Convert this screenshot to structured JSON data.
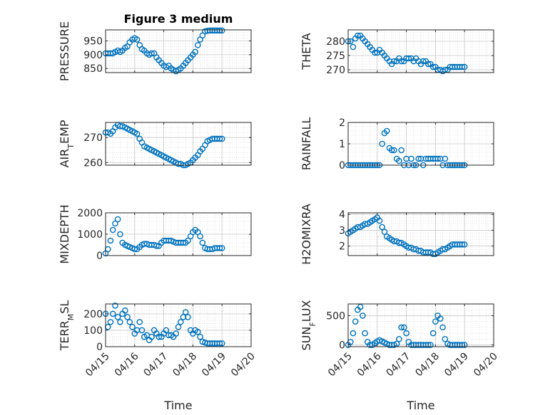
{
  "figure": {
    "title": "Figure 3 medium",
    "xlabel": "Time"
  },
  "chart_data": [
    {
      "type": "scatter",
      "title": "Figure 3 medium",
      "ylabel": "PRESSURE",
      "ylim": [
        835,
        990
      ],
      "yticks": [
        850,
        900,
        950
      ],
      "xlim": [
        0,
        5
      ],
      "xticks": [
        "04/15",
        "04/16",
        "04/17",
        "04/18",
        "04/19",
        "04/20"
      ],
      "grid": true,
      "x": [
        0,
        0.08,
        0.17,
        0.25,
        0.33,
        0.42,
        0.5,
        0.58,
        0.67,
        0.75,
        0.83,
        0.92,
        1.0,
        1.08,
        1.17,
        1.25,
        1.33,
        1.42,
        1.5,
        1.58,
        1.67,
        1.75,
        1.83,
        1.92,
        2.0,
        2.08,
        2.17,
        2.25,
        2.33,
        2.42,
        2.5,
        2.58,
        2.67,
        2.75,
        2.83,
        2.92,
        3.0,
        3.08,
        3.17,
        3.25,
        3.33,
        3.42,
        3.5,
        3.58,
        3.67,
        3.75,
        3.83,
        3.92,
        4.0
      ],
      "y": [
        905,
        905,
        905,
        905,
        910,
        915,
        910,
        915,
        925,
        930,
        945,
        955,
        960,
        955,
        935,
        920,
        915,
        905,
        900,
        905,
        905,
        890,
        880,
        870,
        860,
        855,
        860,
        850,
        845,
        840,
        845,
        850,
        860,
        870,
        880,
        890,
        900,
        910,
        935,
        955,
        970,
        985,
        987,
        988,
        988,
        988,
        988,
        988,
        988
      ]
    },
    {
      "type": "scatter",
      "ylabel": "THETA",
      "ylim": [
        269,
        284
      ],
      "yticks": [
        270,
        275,
        280
      ],
      "xlim": [
        0,
        5
      ],
      "xticks": [
        "04/15",
        "04/16",
        "04/17",
        "04/18",
        "04/19",
        "04/20"
      ],
      "grid": true,
      "x": [
        0,
        0.08,
        0.17,
        0.25,
        0.33,
        0.42,
        0.5,
        0.58,
        0.67,
        0.75,
        0.83,
        0.92,
        1.0,
        1.08,
        1.17,
        1.25,
        1.33,
        1.42,
        1.5,
        1.58,
        1.67,
        1.75,
        1.83,
        1.92,
        2.0,
        2.08,
        2.17,
        2.25,
        2.33,
        2.42,
        2.5,
        2.58,
        2.67,
        2.75,
        2.83,
        2.92,
        3.0,
        3.08,
        3.17,
        3.25,
        3.33,
        3.42,
        3.5,
        3.58,
        3.67,
        3.75,
        3.83,
        3.92,
        4.0
      ],
      "y": [
        280,
        280,
        278,
        281,
        282,
        282,
        281,
        280,
        279,
        278,
        277,
        276,
        276,
        277,
        276,
        275,
        274,
        273,
        272,
        273,
        273,
        274,
        273,
        273,
        274,
        274,
        274,
        273,
        274,
        273,
        272,
        273,
        273,
        272,
        272,
        271,
        271,
        270,
        270,
        269.5,
        270,
        270,
        271,
        271,
        271,
        271,
        271,
        271,
        271
      ]
    },
    {
      "type": "scatter",
      "ylabel": "AIR_TEMP",
      "ylim": [
        259,
        276
      ],
      "yticks": [
        260,
        270
      ],
      "xlim": [
        0,
        5
      ],
      "xticks": [
        "04/15",
        "04/16",
        "04/17",
        "04/18",
        "04/19",
        "04/20"
      ],
      "grid": true,
      "x": [
        0,
        0.08,
        0.17,
        0.25,
        0.33,
        0.42,
        0.5,
        0.58,
        0.67,
        0.75,
        0.83,
        0.92,
        1.0,
        1.08,
        1.17,
        1.25,
        1.33,
        1.42,
        1.5,
        1.58,
        1.67,
        1.75,
        1.83,
        1.92,
        2.0,
        2.08,
        2.17,
        2.25,
        2.33,
        2.42,
        2.5,
        2.58,
        2.67,
        2.75,
        2.83,
        2.92,
        3.0,
        3.08,
        3.17,
        3.25,
        3.33,
        3.42,
        3.5,
        3.58,
        3.67,
        3.75,
        3.83,
        3.92,
        4.0
      ],
      "y": [
        272,
        272,
        271.5,
        272.5,
        274,
        275,
        274.5,
        274.5,
        274,
        273.5,
        273,
        272.5,
        272,
        271.5,
        269.5,
        268,
        266.5,
        266,
        265.5,
        265,
        264.5,
        264,
        263.5,
        263,
        262.5,
        262,
        261.5,
        261,
        260.5,
        260,
        259.5,
        259.5,
        259,
        259,
        259.5,
        260,
        261,
        262,
        263,
        264.5,
        265.5,
        267,
        268.5,
        269,
        269.5,
        269.5,
        269.5,
        269.5,
        269.5
      ]
    },
    {
      "type": "scatter",
      "ylabel": "RAINFALL",
      "ylim": [
        0,
        2
      ],
      "yticks": [
        0,
        1,
        2
      ],
      "xlim": [
        0,
        5
      ],
      "xticks": [
        "04/15",
        "04/16",
        "04/17",
        "04/18",
        "04/19",
        "04/20"
      ],
      "grid": true,
      "x": [
        0,
        0.08,
        0.17,
        0.25,
        0.33,
        0.42,
        0.5,
        0.58,
        0.67,
        0.75,
        0.83,
        0.92,
        1.0,
        1.08,
        1.17,
        1.25,
        1.33,
        1.42,
        1.5,
        1.58,
        1.67,
        1.75,
        1.83,
        1.92,
        2.0,
        2.08,
        2.17,
        2.25,
        2.33,
        2.42,
        2.5,
        2.58,
        2.67,
        2.75,
        2.83,
        2.92,
        3.0,
        3.08,
        3.17,
        3.25,
        3.33,
        3.42,
        3.5,
        3.58,
        3.67,
        3.75,
        3.83,
        3.92,
        4.0
      ],
      "y": [
        0,
        0,
        0,
        0,
        0,
        0,
        0,
        0,
        0,
        0,
        0,
        0,
        0,
        0,
        1.0,
        1.5,
        1.6,
        0.8,
        0.7,
        0.7,
        0.3,
        0.2,
        0.7,
        0,
        0.3,
        0,
        0.3,
        0,
        0,
        0.3,
        0.3,
        0,
        0.3,
        0.3,
        0.3,
        0.3,
        0.3,
        0.3,
        0.3,
        0,
        0.3,
        0,
        0,
        0,
        0,
        0,
        0,
        0,
        0
      ]
    },
    {
      "type": "scatter",
      "ylabel": "MIXDEPTH",
      "ylim": [
        0,
        2000
      ],
      "yticks": [
        0,
        1000,
        2000
      ],
      "xlim": [
        0,
        5
      ],
      "xticks": [
        "04/15",
        "04/16",
        "04/17",
        "04/18",
        "04/19",
        "04/20"
      ],
      "grid": true,
      "x": [
        0,
        0.08,
        0.17,
        0.25,
        0.33,
        0.42,
        0.5,
        0.58,
        0.67,
        0.75,
        0.83,
        0.92,
        1.0,
        1.08,
        1.17,
        1.25,
        1.33,
        1.42,
        1.5,
        1.58,
        1.67,
        1.75,
        1.83,
        1.92,
        2.0,
        2.08,
        2.17,
        2.25,
        2.33,
        2.42,
        2.5,
        2.58,
        2.67,
        2.75,
        2.83,
        2.92,
        3.0,
        3.08,
        3.17,
        3.25,
        3.33,
        3.42,
        3.5,
        3.58,
        3.67,
        3.75,
        3.83,
        3.92,
        4.0
      ],
      "y": [
        100,
        300,
        700,
        1200,
        1500,
        1700,
        1000,
        600,
        500,
        450,
        400,
        350,
        300,
        300,
        400,
        500,
        550,
        550,
        500,
        500,
        500,
        450,
        450,
        600,
        700,
        700,
        700,
        700,
        650,
        600,
        600,
        600,
        600,
        600,
        700,
        900,
        1100,
        1200,
        1100,
        900,
        600,
        350,
        300,
        300,
        300,
        350,
        350,
        350,
        350
      ]
    },
    {
      "type": "scatter",
      "ylabel": "H2OMIXRA",
      "ylim": [
        1.4,
        4.1
      ],
      "yticks": [
        2,
        3,
        4
      ],
      "xlim": [
        0,
        5
      ],
      "xticks": [
        "04/15",
        "04/16",
        "04/17",
        "04/18",
        "04/19",
        "04/20"
      ],
      "grid": true,
      "x": [
        0,
        0.08,
        0.17,
        0.25,
        0.33,
        0.42,
        0.5,
        0.58,
        0.67,
        0.75,
        0.83,
        0.92,
        1.0,
        1.08,
        1.17,
        1.25,
        1.33,
        1.42,
        1.5,
        1.58,
        1.67,
        1.75,
        1.83,
        1.92,
        2.0,
        2.08,
        2.17,
        2.25,
        2.33,
        2.42,
        2.5,
        2.58,
        2.67,
        2.75,
        2.83,
        2.92,
        3.0,
        3.08,
        3.17,
        3.25,
        3.33,
        3.42,
        3.5,
        3.58,
        3.67,
        3.75,
        3.83,
        3.92,
        4.0
      ],
      "y": [
        2.8,
        2.9,
        3.0,
        3.1,
        3.2,
        3.2,
        3.3,
        3.4,
        3.4,
        3.5,
        3.6,
        3.7,
        3.8,
        3.6,
        3.2,
        2.9,
        2.6,
        2.5,
        2.4,
        2.3,
        2.3,
        2.2,
        2.2,
        2.1,
        2.0,
        1.9,
        1.9,
        1.8,
        1.8,
        1.7,
        1.7,
        1.6,
        1.6,
        1.6,
        1.6,
        1.5,
        1.5,
        1.6,
        1.7,
        1.8,
        1.8,
        1.9,
        2.0,
        2.1,
        2.1,
        2.1,
        2.1,
        2.1,
        2.1
      ]
    },
    {
      "type": "scatter",
      "ylabel": "TERR_MSL",
      "ylim": [
        0,
        260
      ],
      "yticks": [
        0,
        100,
        200
      ],
      "xlim": [
        0,
        5
      ],
      "xticks": [
        "04/15",
        "04/16",
        "04/17",
        "04/18",
        "04/19",
        "04/20"
      ],
      "grid": true,
      "x": [
        0,
        0.08,
        0.17,
        0.25,
        0.33,
        0.42,
        0.5,
        0.58,
        0.67,
        0.75,
        0.83,
        0.92,
        1.0,
        1.08,
        1.17,
        1.25,
        1.33,
        1.42,
        1.5,
        1.58,
        1.67,
        1.75,
        1.83,
        1.92,
        2.0,
        2.08,
        2.17,
        2.25,
        2.33,
        2.42,
        2.5,
        2.58,
        2.67,
        2.75,
        2.83,
        2.92,
        3.0,
        3.08,
        3.17,
        3.25,
        3.33,
        3.42,
        3.5,
        3.58,
        3.67,
        3.75,
        3.83,
        3.92,
        4.0
      ],
      "y": [
        200,
        120,
        150,
        200,
        250,
        180,
        150,
        200,
        220,
        180,
        150,
        120,
        80,
        100,
        150,
        100,
        60,
        70,
        40,
        60,
        100,
        80,
        60,
        60,
        80,
        100,
        70,
        70,
        60,
        80,
        120,
        150,
        180,
        210,
        180,
        100,
        80,
        100,
        90,
        60,
        30,
        25,
        20,
        20,
        20,
        20,
        20,
        20,
        20
      ]
    },
    {
      "type": "scatter",
      "ylabel": "SUN_FLUX",
      "ylim": [
        -30,
        700
      ],
      "yticks": [
        0,
        500
      ],
      "xlim": [
        0,
        5
      ],
      "xticks": [
        "04/15",
        "04/16",
        "04/17",
        "04/18",
        "04/19",
        "04/20"
      ],
      "grid": true,
      "x": [
        0,
        0.08,
        0.17,
        0.25,
        0.33,
        0.42,
        0.5,
        0.58,
        0.67,
        0.75,
        0.83,
        0.92,
        1.0,
        1.08,
        1.17,
        1.25,
        1.33,
        1.42,
        1.5,
        1.58,
        1.67,
        1.75,
        1.83,
        1.92,
        2.0,
        2.08,
        2.17,
        2.25,
        2.33,
        2.42,
        2.5,
        2.58,
        2.67,
        2.75,
        2.83,
        2.92,
        3.0,
        3.08,
        3.17,
        3.25,
        3.33,
        3.42,
        3.5,
        3.58,
        3.67,
        3.75,
        3.83,
        3.92,
        4.0
      ],
      "y": [
        0,
        50,
        200,
        400,
        600,
        650,
        500,
        200,
        50,
        0,
        0,
        30,
        60,
        80,
        60,
        40,
        20,
        0,
        0,
        0,
        20,
        100,
        300,
        300,
        200,
        50,
        0,
        0,
        0,
        0,
        0,
        0,
        0,
        0,
        0,
        200,
        400,
        500,
        450,
        300,
        100,
        20,
        0,
        0,
        0,
        0,
        0,
        0,
        0
      ]
    }
  ]
}
